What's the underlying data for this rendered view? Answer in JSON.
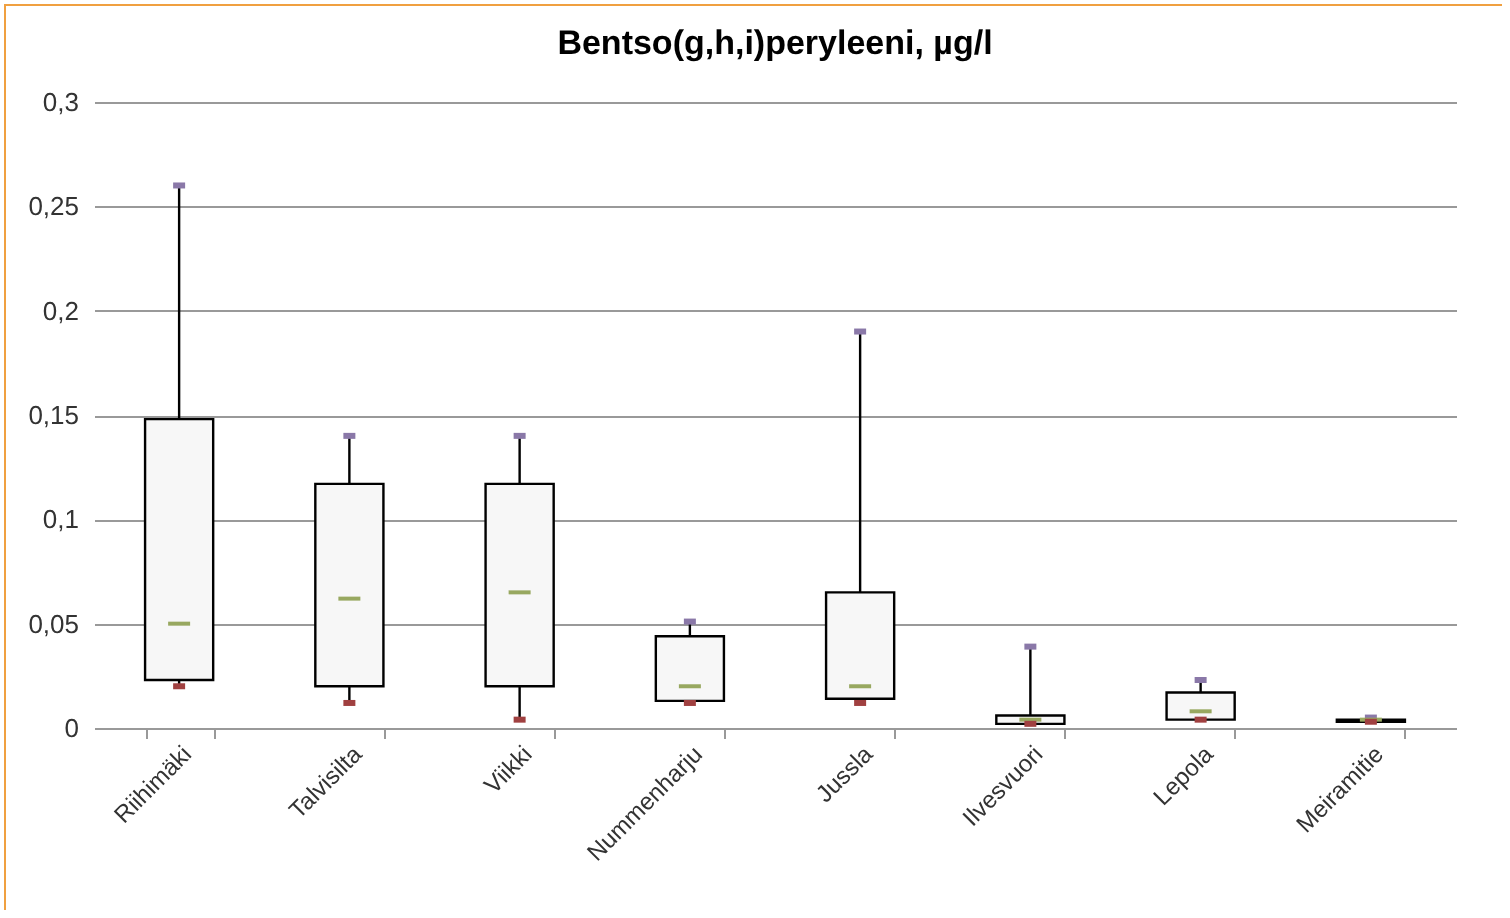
{
  "chart_data": {
    "type": "box",
    "title": "Bentso(g,h,i)peryleeni,  µg/l",
    "categories": [
      "Riihimäki",
      "Talvisilta",
      "Viikki",
      "Nummenharju",
      "Jussla",
      "Ilvesvuori",
      "Lepola",
      "Meiramitie"
    ],
    "series": [
      {
        "color": "#f7f7f7",
        "boxes": [
          {
            "low": 0.02,
            "q1": 0.023,
            "median": 0.05,
            "q3": 0.148,
            "high": 0.26
          },
          {
            "low": 0.012,
            "q1": 0.02,
            "median": 0.062,
            "q3": 0.117,
            "high": 0.14
          },
          {
            "low": 0.004,
            "q1": 0.02,
            "median": 0.065,
            "q3": 0.117,
            "high": 0.14
          },
          {
            "low": 0.012,
            "q1": 0.013,
            "median": 0.02,
            "q3": 0.044,
            "high": 0.051
          },
          {
            "low": 0.012,
            "q1": 0.014,
            "median": 0.02,
            "q3": 0.065,
            "high": 0.19
          },
          {
            "low": 0.002,
            "q1": 0.002,
            "median": 0.004,
            "q3": 0.006,
            "high": 0.039
          },
          {
            "low": 0.004,
            "q1": 0.004,
            "median": 0.008,
            "q3": 0.017,
            "high": 0.023
          },
          {
            "low": 0.003,
            "q1": 0.003,
            "median": 0.004,
            "q3": 0.004,
            "high": 0.005
          }
        ]
      }
    ],
    "ylim": [
      0,
      0.3
    ],
    "yticks": [
      {
        "value": 0,
        "label": "0"
      },
      {
        "value": 0.05,
        "label": "0,05"
      },
      {
        "value": 0.1,
        "label": "0,1"
      },
      {
        "value": 0.15,
        "label": "0,15"
      },
      {
        "value": 0.2,
        "label": "0,2"
      },
      {
        "value": 0.25,
        "label": "0,25"
      },
      {
        "value": 0.3,
        "label": "0,3"
      }
    ],
    "grid": "y"
  }
}
